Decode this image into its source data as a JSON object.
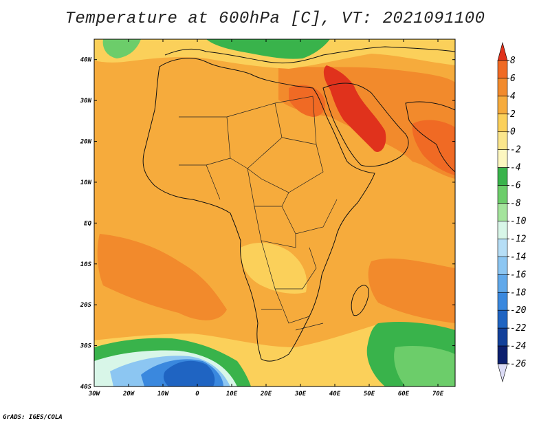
{
  "title": "Temperature at 600hPa [C], VT: 2021091100",
  "footer": "GrADS: IGES/COLA",
  "map": {
    "lon_range": [
      -30,
      75
    ],
    "lat_range": [
      -40,
      45
    ],
    "x_ticks": [
      "30W",
      "20W",
      "10W",
      "0",
      "10E",
      "20E",
      "30E",
      "40E",
      "50E",
      "60E",
      "70E"
    ],
    "x_tick_values": [
      -30,
      -20,
      -10,
      0,
      10,
      20,
      30,
      40,
      50,
      60,
      70
    ],
    "y_ticks": [
      "40N",
      "30N",
      "20N",
      "10N",
      "EQ",
      "10S",
      "20S",
      "30S",
      "40S"
    ],
    "y_tick_values": [
      40,
      30,
      20,
      10,
      0,
      -10,
      -20,
      -30,
      -40
    ],
    "base_color": "#f6ab3c"
  },
  "colorbar": {
    "labels": [
      "8",
      "6",
      "4",
      "2",
      "0",
      "-2",
      "-4",
      "-6",
      "-8",
      "-10",
      "-12",
      "-14",
      "-16",
      "-18",
      "-20",
      "-22",
      "-24",
      "-26"
    ],
    "colors": [
      "#e0321c",
      "#f06a24",
      "#f28a2c",
      "#f6ab3c",
      "#fbd05a",
      "#fbe68c",
      "#fdf7c0",
      "#39b34b",
      "#6ccd6a",
      "#a4e49c",
      "#d8f6e8",
      "#b6def6",
      "#8cc6f2",
      "#60a8ea",
      "#3a88de",
      "#1f64c2",
      "#12409a",
      "#0c1f6e",
      "#dcdcf6"
    ]
  }
}
